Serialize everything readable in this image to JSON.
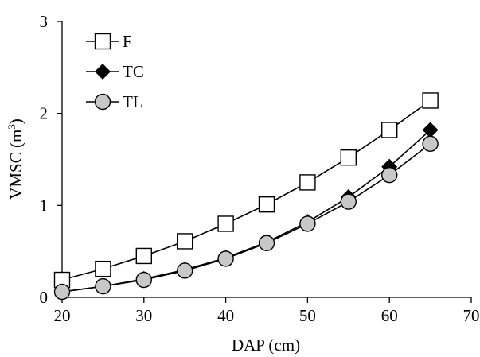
{
  "chart_data": {
    "type": "line",
    "xlabel": "DAP (cm)",
    "ylabel_main": "VMSC (m",
    "ylabel_sup": "3",
    "ylabel_close": ")",
    "xlim": [
      20,
      70
    ],
    "ylim": [
      0,
      3
    ],
    "x_ticks": [
      20,
      30,
      40,
      50,
      60,
      70
    ],
    "y_ticks": [
      0,
      1,
      2,
      3
    ],
    "grid": false,
    "legend_position": "top-left",
    "x": [
      20,
      25,
      30,
      35,
      40,
      45,
      50,
      55,
      60,
      65
    ],
    "series": [
      {
        "name": "F",
        "marker": "square",
        "fill": "#ffffff",
        "values": [
          0.19,
          0.31,
          0.45,
          0.61,
          0.8,
          1.01,
          1.25,
          1.52,
          1.82,
          2.14
        ]
      },
      {
        "name": "TC",
        "marker": "diamond",
        "fill": "#000000",
        "values": [
          0.06,
          0.12,
          0.2,
          0.3,
          0.43,
          0.6,
          0.82,
          1.09,
          1.42,
          1.82
        ]
      },
      {
        "name": "TL",
        "marker": "circle",
        "fill": "#c8c8c8",
        "values": [
          0.06,
          0.12,
          0.19,
          0.29,
          0.42,
          0.59,
          0.8,
          1.04,
          1.33,
          1.67
        ]
      }
    ]
  }
}
